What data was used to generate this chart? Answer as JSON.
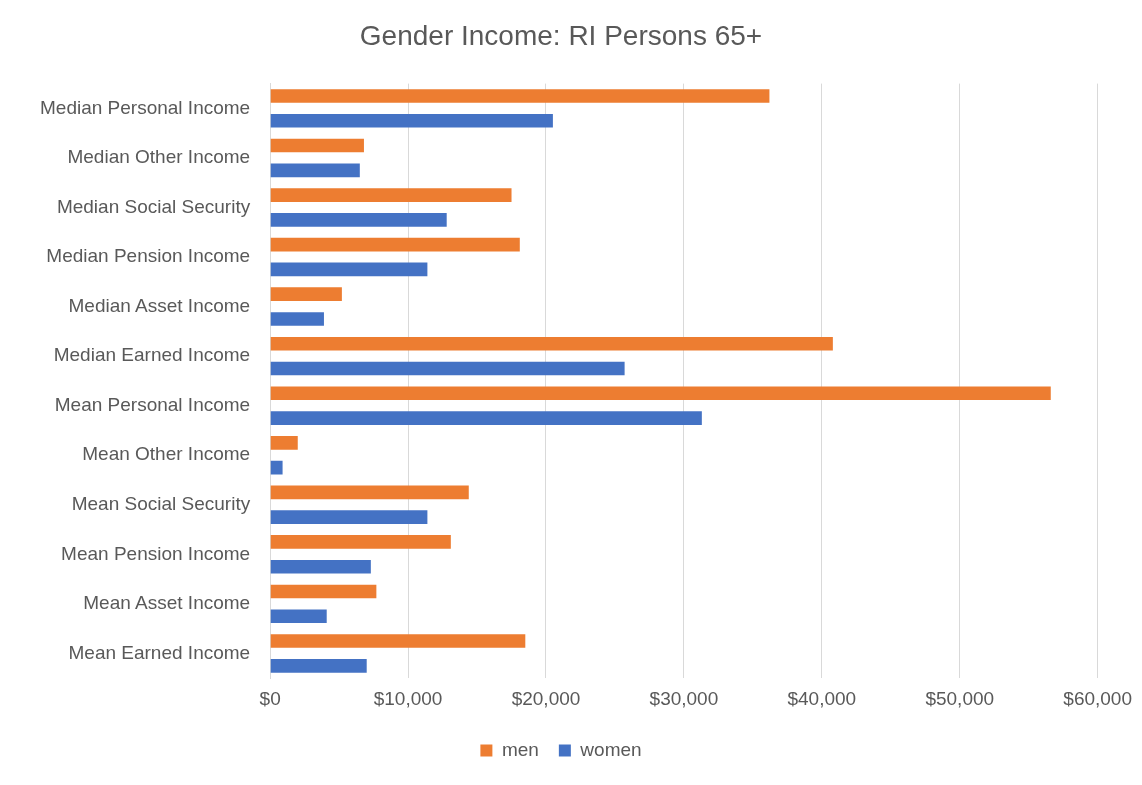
{
  "chart_data": {
    "type": "bar",
    "orientation": "horizontal",
    "title": "Gender Income: RI Persons 65+",
    "categories": [
      "Median Personal Income",
      "Median Other Income",
      "Median Social Security",
      "Median Pension Income",
      "Median Asset Income",
      "Median Earned Income",
      "Mean Personal Income",
      "Mean Other Income",
      "Mean Social Security",
      "Mean Pension Income",
      "Mean Asset Income",
      "Mean Earned Income"
    ],
    "series": [
      {
        "name": "men",
        "color": "#ed7d31",
        "values": [
          36200,
          6800,
          17500,
          18100,
          5200,
          40800,
          56600,
          2000,
          14400,
          13100,
          7700,
          18500
        ]
      },
      {
        "name": "women",
        "color": "#4472c4",
        "values": [
          20500,
          6500,
          12800,
          11400,
          3900,
          25700,
          31300,
          900,
          11400,
          7300,
          4100,
          7000
        ]
      }
    ],
    "xlim": [
      0,
      60000
    ],
    "xticks": [
      {
        "value": 0,
        "label": "$0"
      },
      {
        "value": 10000,
        "label": "$10,000"
      },
      {
        "value": 20000,
        "label": "$20,000"
      },
      {
        "value": 30000,
        "label": "$30,000"
      },
      {
        "value": 40000,
        "label": "$40,000"
      },
      {
        "value": 50000,
        "label": "$50,000"
      },
      {
        "value": 60000,
        "label": "$60,000"
      }
    ],
    "grid": "x",
    "legend": "bottom"
  }
}
